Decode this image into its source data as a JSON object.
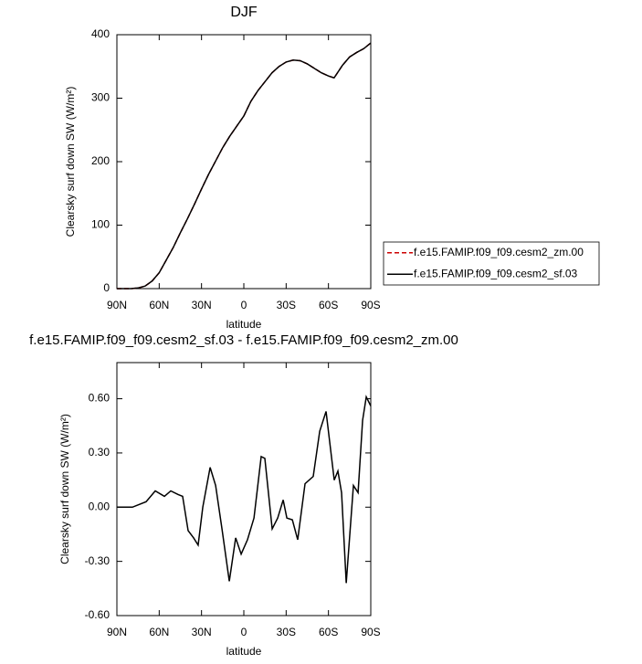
{
  "chart_data": [
    {
      "type": "line",
      "title": "DJF",
      "x_label": "latitude",
      "y_label": "Clearsky surf down SW (W/m²)",
      "x": [
        90,
        80,
        75,
        70,
        65,
        60,
        55,
        50,
        45,
        40,
        35,
        30,
        25,
        20,
        15,
        10,
        5,
        0,
        -5,
        -10,
        -15,
        -20,
        -25,
        -30,
        -35,
        -40,
        -45,
        -50,
        -55,
        -60,
        -64,
        -70,
        -75,
        -80,
        -85,
        -90
      ],
      "series": [
        {
          "name": "f.e15.FAMIP.f09_f09.cesm2_zm.00",
          "color": "#cc0000",
          "linestyle": "dashed",
          "values": [
            0,
            0,
            1,
            4,
            12,
            25,
            45,
            65,
            88,
            110,
            133,
            157,
            180,
            201,
            222,
            240,
            256,
            272,
            295,
            312,
            326,
            340,
            350,
            357,
            360,
            359,
            354,
            347,
            340,
            335,
            332,
            352,
            365,
            372,
            378,
            387
          ]
        },
        {
          "name": "f.e15.FAMIP.f09_f09.cesm2_sf.03",
          "color": "#000000",
          "linestyle": "solid",
          "values": [
            0,
            0,
            1,
            4,
            12,
            25,
            45,
            65,
            88,
            110,
            133,
            157,
            180,
            201,
            222,
            240,
            256,
            272,
            295,
            312,
            326,
            340,
            350,
            357,
            360,
            359,
            354,
            347,
            340,
            335,
            332,
            352,
            365,
            372,
            378,
            387
          ]
        }
      ],
      "xlim": [
        90,
        -90
      ],
      "xticks": [
        {
          "value": 90,
          "label": "90N"
        },
        {
          "value": 60,
          "label": "60N"
        },
        {
          "value": 30,
          "label": "30N"
        },
        {
          "value": 0,
          "label": "0"
        },
        {
          "value": -30,
          "label": "30S"
        },
        {
          "value": -60,
          "label": "60S"
        },
        {
          "value": -90,
          "label": "90S"
        }
      ],
      "ylim": [
        0,
        400
      ],
      "yticks": [
        0,
        100,
        200,
        300,
        400
      ],
      "legend": "right"
    },
    {
      "type": "line",
      "title": "f.e15.FAMIP.f09_f09.cesm2_sf.03 - f.e15.FAMIP.f09_f09.cesm2_zm.00",
      "x_label": "latitude",
      "y_label": "Clearsky surf down SW (W/m²)",
      "x": [
        90,
        79,
        69.3,
        62.8,
        56.3,
        51.8,
        46.6,
        43.4,
        39.5,
        35.6,
        32.4,
        29.1,
        23.9,
        20,
        15.5,
        10.3,
        5.8,
        1.9,
        -2.6,
        -7.2,
        -12.3,
        -14.9,
        -20.1,
        -24,
        -27.9,
        -30.5,
        -34.4,
        -38.2,
        -43.4,
        -49.2,
        -53.8,
        -58.3,
        -64.1,
        -66.7,
        -69.3,
        -72.6,
        -77.7,
        -81,
        -84.2,
        -86.8,
        -90
      ],
      "values": [
        0,
        0,
        0.03,
        0.09,
        0.06,
        0.09,
        0.07,
        0.06,
        -0.13,
        -0.17,
        -0.21,
        0,
        0.22,
        0.12,
        -0.12,
        -0.41,
        -0.17,
        -0.26,
        -0.18,
        -0.06,
        0.28,
        0.27,
        -0.12,
        -0.06,
        0.04,
        -0.06,
        -0.07,
        -0.18,
        0.13,
        0.17,
        0.42,
        0.53,
        0.15,
        0.2,
        0.08,
        -0.42,
        0.12,
        0.08,
        0.48,
        0.61,
        0.56
      ],
      "color": "#000000",
      "xlim": [
        90,
        -90
      ],
      "xticks": [
        {
          "value": 90,
          "label": "90N"
        },
        {
          "value": 60,
          "label": "60N"
        },
        {
          "value": 30,
          "label": "30N"
        },
        {
          "value": 0,
          "label": "0"
        },
        {
          "value": -30,
          "label": "30S"
        },
        {
          "value": -60,
          "label": "60S"
        },
        {
          "value": -90,
          "label": "90S"
        }
      ],
      "ylim": [
        -0.6,
        0.8
      ],
      "yticks": [
        {
          "value": -0.6,
          "label": "-0.60"
        },
        {
          "value": -0.3,
          "label": "-0.30"
        },
        {
          "value": 0,
          "label": "0.00"
        },
        {
          "value": 0.3,
          "label": "0.30"
        },
        {
          "value": 0.6,
          "label": "0.60"
        }
      ]
    }
  ]
}
